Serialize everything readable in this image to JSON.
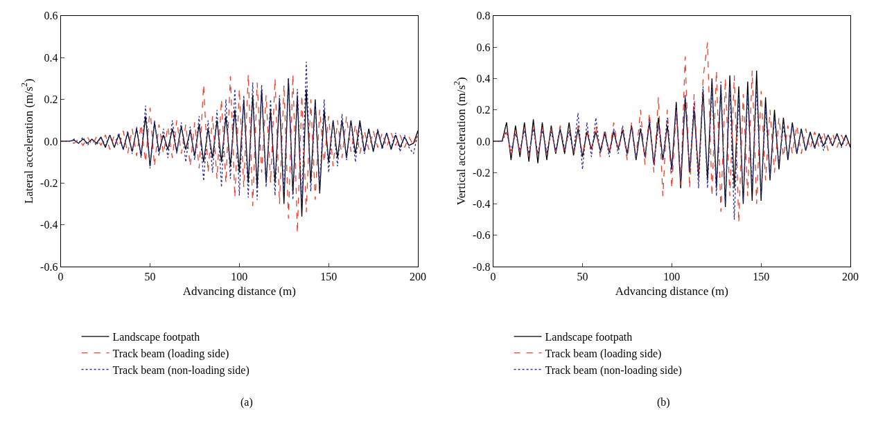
{
  "chart_data": [
    {
      "type": "line",
      "xlabel": "Advancing distance (m)",
      "ylabel": "Lateral acceleration (m/s$^{2}$)",
      "annotations": [
        "(a)"
      ],
      "legend": "bottom",
      "marker": "none",
      "xlim": [
        0,
        200
      ],
      "xticks": [
        0,
        50,
        100,
        150,
        200
      ],
      "ylim": [
        -0.6,
        0.6
      ],
      "yticks": [
        -0.6,
        -0.4,
        -0.2,
        {
          "value": 0,
          "label": "0.0"
        },
        0.2,
        0.4,
        0.6
      ],
      "x": [
        0,
        2.5,
        5,
        7.5,
        10,
        12.5,
        15,
        17.5,
        20,
        22.5,
        25,
        27.5,
        30,
        32.5,
        35,
        37.5,
        40,
        42.5,
        45,
        47.5,
        50,
        52.5,
        55,
        57.5,
        60,
        62.5,
        65,
        67.5,
        70,
        72.5,
        75,
        77.5,
        80,
        82.5,
        85,
        87.5,
        90,
        92.5,
        95,
        97.5,
        100,
        102.5,
        105,
        107.5,
        110,
        112.5,
        115,
        117.5,
        120,
        122.5,
        125,
        127.5,
        130,
        132.5,
        135,
        137.5,
        140,
        142.5,
        145,
        147.5,
        150,
        152.5,
        155,
        157.5,
        160,
        162.5,
        165,
        167.5,
        170,
        172.5,
        175,
        177.5,
        180,
        182.5,
        185,
        187.5,
        190,
        192.5,
        195,
        197.5,
        200
      ],
      "series": [
        {
          "name": "Landscape footpath",
          "color": "#000000",
          "line_style": "solid",
          "values": [
            0,
            0,
            0,
            0.005,
            -0.01,
            0.01,
            -0.01,
            0.01,
            -0.01,
            0.02,
            -0.03,
            0.03,
            -0.03,
            0.03,
            -0.04,
            0.04,
            -0.05,
            0.06,
            -0.07,
            0.12,
            -0.12,
            0.09,
            -0.05,
            0.03,
            -0.04,
            0.06,
            -0.05,
            0.07,
            -0.04,
            0.05,
            -0.07,
            0.08,
            -0.1,
            0.06,
            -0.08,
            0.1,
            -0.1,
            0.12,
            -0.12,
            0.15,
            -0.15,
            0.2,
            -0.2,
            0.22,
            -0.22,
            0.25,
            -0.2,
            0.15,
            -0.2,
            0.2,
            -0.3,
            0.3,
            -0.25,
            0.22,
            -0.36,
            0.25,
            -0.2,
            0.2,
            -0.25,
            0.15,
            -0.1,
            0.1,
            -0.08,
            0.1,
            -0.08,
            0.1,
            -0.06,
            0.1,
            -0.05,
            0.06,
            -0.05,
            0.05,
            -0.03,
            0.04,
            -0.04,
            0.03,
            -0.03,
            0.02,
            -0.02,
            -0.01,
            0.05
          ]
        },
        {
          "name": "Track beam (loading side)",
          "color": "#f03c28",
          "line_style": "dashed",
          "values": [
            0,
            0,
            0,
            -0.01,
            0.01,
            -0.02,
            0.02,
            -0.02,
            0.02,
            -0.02,
            0.03,
            -0.04,
            0.03,
            -0.03,
            0.05,
            -0.06,
            0.06,
            -0.07,
            0.08,
            -0.1,
            0.16,
            -0.12,
            0.08,
            -0.06,
            0.07,
            -0.08,
            0.1,
            -0.06,
            0.08,
            -0.12,
            0.09,
            -0.13,
            0.27,
            -0.15,
            0.12,
            -0.18,
            0.2,
            -0.2,
            0.31,
            -0.27,
            0.25,
            -0.22,
            0.32,
            -0.31,
            0.28,
            -0.15,
            0.22,
            -0.2,
            0.3,
            -0.3,
            0.27,
            -0.37,
            0.32,
            -0.44,
            0.22,
            -0.34,
            0.2,
            -0.28,
            0.15,
            -0.1,
            0.12,
            -0.12,
            0.1,
            -0.08,
            0.12,
            -0.05,
            0.08,
            -0.06,
            0.05,
            -0.04,
            0.05,
            -0.03,
            0.04,
            -0.03,
            0.04,
            -0.02,
            0.03,
            -0.03,
            0.02,
            -0.02,
            0.04
          ]
        },
        {
          "name": "Track beam (non-loading side)",
          "color": "#2b2b9e",
          "line_style": "dotted",
          "values": [
            0,
            0,
            0,
            0.01,
            -0.01,
            0.02,
            -0.02,
            0.01,
            -0.02,
            0.02,
            -0.02,
            0.03,
            -0.03,
            0.04,
            -0.04,
            0.05,
            -0.06,
            0.07,
            -0.08,
            0.17,
            -0.13,
            0.1,
            -0.07,
            0.06,
            -0.08,
            0.1,
            -0.06,
            0.09,
            -0.1,
            0.07,
            -0.09,
            0.12,
            -0.19,
            0.1,
            -0.15,
            0.15,
            -0.22,
            0.2,
            -0.18,
            0.25,
            -0.26,
            0.22,
            -0.27,
            0.28,
            -0.28,
            0.27,
            -0.22,
            0.2,
            -0.26,
            0.22,
            -0.25,
            0.3,
            -0.28,
            0.25,
            -0.3,
            0.38,
            -0.24,
            0.18,
            -0.22,
            0.2,
            -0.15,
            0.1,
            -0.12,
            0.13,
            -0.09,
            0.1,
            -0.1,
            0.08,
            -0.06,
            0.05,
            -0.04,
            0.06,
            -0.04,
            0.04,
            -0.03,
            0.04,
            -0.05,
            0.03,
            -0.03,
            -0.06,
            0.04
          ]
        }
      ]
    },
    {
      "type": "line",
      "xlabel": "Advancing distance (m)",
      "ylabel": "Vertical acceleration (m/s$^{2}$)",
      "annotations": [
        "(b)"
      ],
      "legend": "bottom",
      "marker": "none",
      "xlim": [
        0,
        200
      ],
      "xticks": [
        0,
        50,
        100,
        150,
        200
      ],
      "ylim": [
        -0.8,
        0.8
      ],
      "yticks": [
        -0.8,
        -0.6,
        -0.4,
        -0.2,
        {
          "value": 0,
          "label": "0.0"
        },
        0.2,
        0.4,
        0.6,
        0.8
      ],
      "x": [
        0,
        2.5,
        5,
        7.5,
        10,
        12.5,
        15,
        17.5,
        20,
        22.5,
        25,
        27.5,
        30,
        32.5,
        35,
        37.5,
        40,
        42.5,
        45,
        47.5,
        50,
        52.5,
        55,
        57.5,
        60,
        62.5,
        65,
        67.5,
        70,
        72.5,
        75,
        77.5,
        80,
        82.5,
        85,
        87.5,
        90,
        92.5,
        95,
        97.5,
        100,
        102.5,
        105,
        107.5,
        110,
        112.5,
        115,
        117.5,
        120,
        122.5,
        125,
        127.5,
        130,
        132.5,
        135,
        137.5,
        140,
        142.5,
        145,
        147.5,
        150,
        152.5,
        155,
        157.5,
        160,
        162.5,
        165,
        167.5,
        170,
        172.5,
        175,
        177.5,
        180,
        182.5,
        185,
        187.5,
        190,
        192.5,
        195,
        197.5,
        200
      ],
      "series": [
        {
          "name": "Landscape footpath",
          "color": "#000000",
          "line_style": "solid",
          "values": [
            0,
            0,
            0,
            0.12,
            -0.12,
            0.1,
            -0.1,
            0.12,
            -0.13,
            0.14,
            -0.14,
            0.12,
            -0.12,
            0.1,
            -0.08,
            0.08,
            -0.08,
            0.12,
            -0.09,
            0.08,
            -0.1,
            0.06,
            -0.05,
            0.06,
            -0.06,
            0.05,
            -0.07,
            0.06,
            -0.05,
            0.07,
            -0.08,
            0.1,
            -0.12,
            0.08,
            -0.1,
            0.12,
            -0.15,
            0.15,
            -0.12,
            0.1,
            -0.18,
            0.25,
            -0.3,
            0.28,
            -0.2,
            0.2,
            -0.22,
            0.32,
            -0.25,
            0.4,
            -0.3,
            0.35,
            -0.42,
            0.42,
            -0.3,
            0.35,
            -0.4,
            0.38,
            -0.38,
            0.45,
            -0.38,
            0.28,
            -0.25,
            0.2,
            -0.18,
            0.15,
            -0.12,
            0.12,
            -0.08,
            0.08,
            -0.06,
            0.06,
            -0.04,
            0.05,
            -0.03,
            0.04,
            -0.03,
            0.05,
            -0.03,
            0.04,
            -0.04
          ]
        },
        {
          "name": "Track beam (loading side)",
          "color": "#f03c28",
          "line_style": "dashed",
          "values": [
            0,
            0,
            0,
            0.08,
            -0.09,
            0.07,
            -0.08,
            0.09,
            -0.1,
            0.1,
            -0.1,
            0.09,
            -0.08,
            0.08,
            -0.07,
            0.1,
            -0.06,
            0.07,
            -0.08,
            0.1,
            -0.09,
            0.08,
            -0.07,
            0.1,
            -0.1,
            0.08,
            -0.08,
            0.12,
            -0.06,
            0.1,
            -0.12,
            0.12,
            -0.1,
            0.2,
            -0.15,
            0.18,
            -0.2,
            0.28,
            -0.35,
            0.2,
            -0.3,
            0.2,
            -0.28,
            0.54,
            -0.3,
            0.3,
            -0.25,
            0.4,
            0.63,
            -0.35,
            0.45,
            -0.45,
            0.4,
            -0.35,
            0.42,
            -0.52,
            0.3,
            -0.35,
            0.45,
            -0.4,
            0.32,
            -0.25,
            0.2,
            -0.2,
            0.15,
            -0.1,
            0.1,
            -0.08,
            0.1,
            -0.08,
            0.08,
            -0.05,
            0.06,
            -0.04,
            0.06,
            -0.06,
            0.05,
            -0.04,
            0.04,
            -0.03,
            0.02
          ]
        },
        {
          "name": "Track beam (non-loading side)",
          "color": "#2b2b9e",
          "line_style": "dotted",
          "values": [
            0,
            0,
            0,
            0.06,
            -0.06,
            0.05,
            -0.06,
            0.07,
            -0.08,
            0.08,
            -0.08,
            0.07,
            -0.07,
            0.06,
            -0.06,
            0.08,
            -0.05,
            0.06,
            -0.07,
            0.18,
            -0.18,
            0.12,
            -0.1,
            0.15,
            -0.08,
            0.06,
            -0.1,
            0.08,
            -0.08,
            0.1,
            -0.09,
            0.1,
            -0.12,
            0.1,
            -0.1,
            0.14,
            -0.15,
            0.1,
            -0.12,
            0.15,
            -0.2,
            0.22,
            -0.25,
            0.3,
            -0.2,
            0.25,
            -0.3,
            0.35,
            -0.3,
            0.35,
            -0.35,
            0.38,
            -0.4,
            0.35,
            -0.5,
            0.3,
            -0.38,
            0.3,
            -0.3,
            0.35,
            -0.35,
            0.2,
            -0.22,
            0.15,
            -0.15,
            0.1,
            -0.1,
            0.1,
            -0.08,
            0.07,
            -0.06,
            0.05,
            -0.05,
            0.04,
            -0.06,
            0.04,
            -0.03,
            0.04,
            -0.04,
            0.03,
            -0.03
          ]
        }
      ]
    }
  ]
}
